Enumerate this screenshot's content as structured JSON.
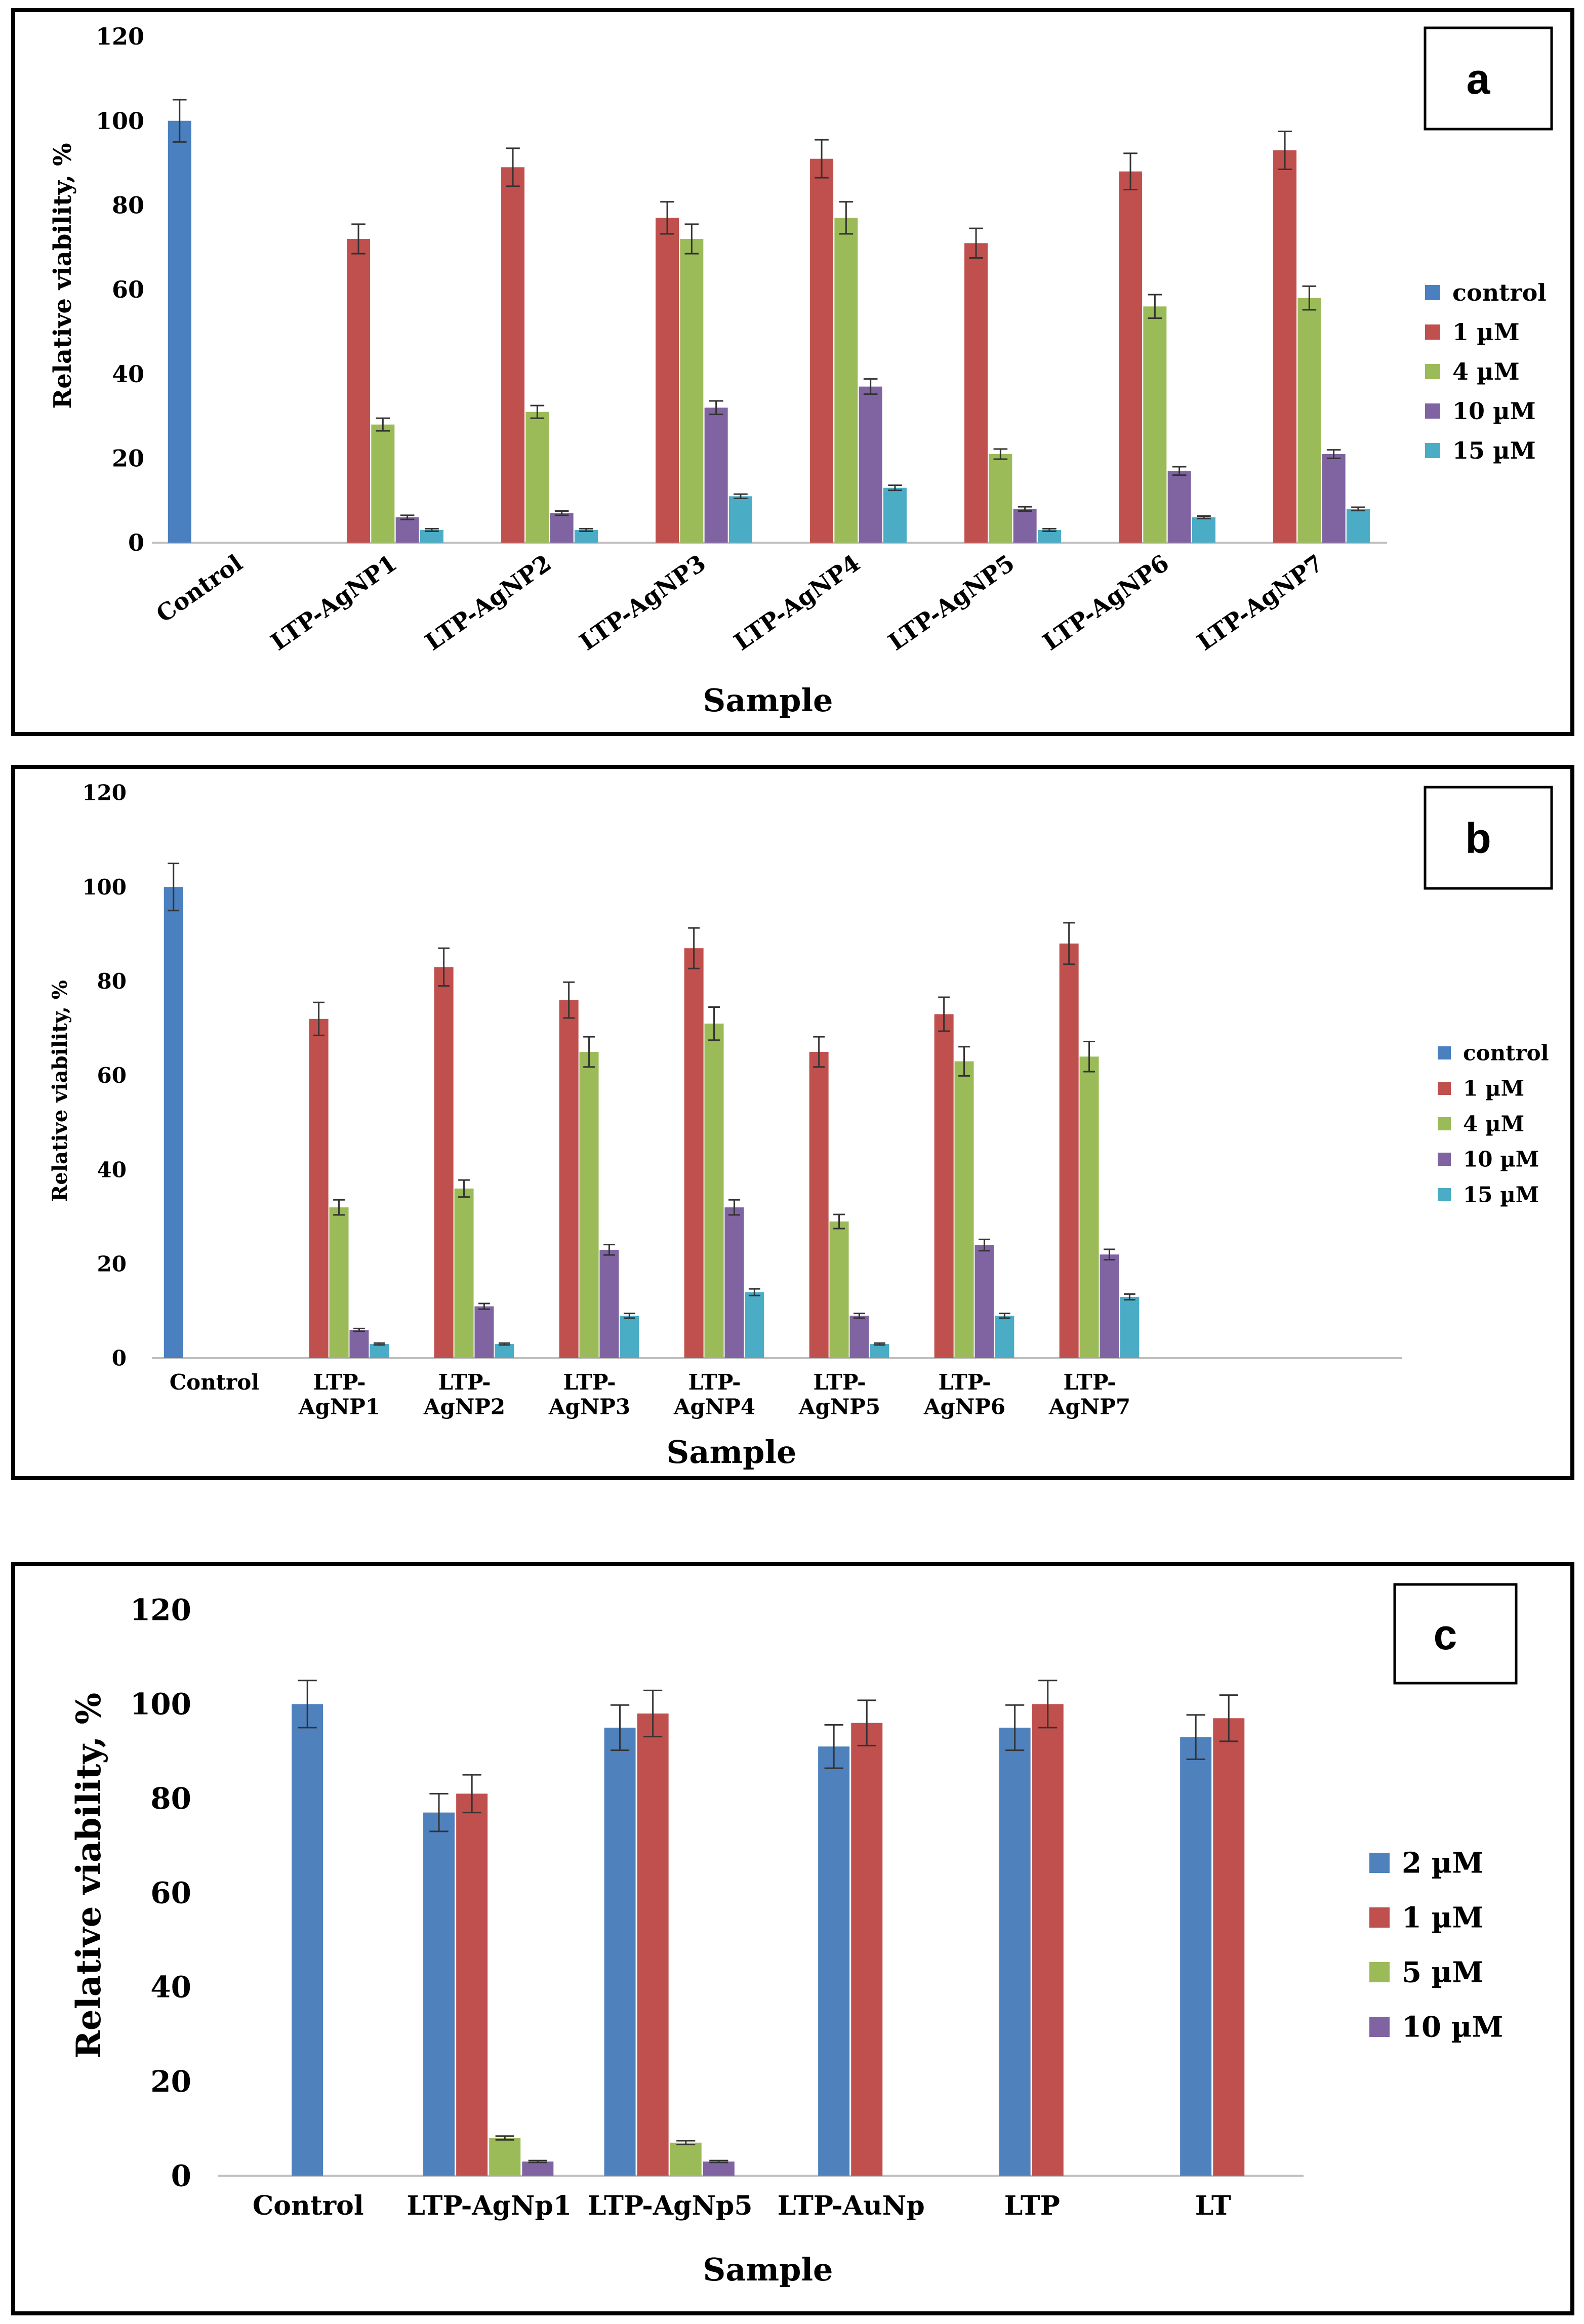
{
  "chart_data": [
    {
      "type": "bar",
      "panel_label": "a",
      "xlabel": "Sample",
      "ylabel": "Relative viability, %",
      "ylim": [
        0,
        120
      ],
      "yticks": [
        0,
        20,
        40,
        60,
        80,
        100,
        120
      ],
      "categories": [
        "Control",
        "LTP-AgNP1",
        "LTP-AgNP2",
        "LTP-AgNP3",
        "LTP-AgNP4",
        "LTP-AgNP5",
        "LTP-AgNP6",
        "LTP-AgNP7"
      ],
      "legend_position": "right",
      "series": [
        {
          "name": "control",
          "color": "#4a7fc0",
          "values": [
            100,
            null,
            null,
            null,
            null,
            null,
            null,
            null
          ],
          "errors": [
            5,
            0,
            0,
            0,
            0,
            0,
            0,
            0
          ]
        },
        {
          "name": "1 µM",
          "color": "#c0504d",
          "values": [
            null,
            72,
            89,
            77,
            91,
            71,
            88,
            93
          ],
          "errors": [
            0,
            3.5,
            4.5,
            3.8,
            4.5,
            3.5,
            4.3,
            4.5
          ]
        },
        {
          "name": "4 µM",
          "color": "#9bbb59",
          "values": [
            null,
            28,
            31,
            72,
            77,
            21,
            56,
            58
          ],
          "errors": [
            0,
            1.5,
            1.5,
            3.5,
            3.8,
            1.2,
            2.8,
            2.8
          ]
        },
        {
          "name": "10 µM",
          "color": "#8064a2",
          "values": [
            null,
            6,
            7,
            32,
            37,
            8,
            17,
            21
          ],
          "errors": [
            0,
            0.5,
            0.5,
            1.6,
            1.8,
            0.5,
            1,
            1
          ]
        },
        {
          "name": "15 µM",
          "color": "#4bacc6",
          "values": [
            null,
            3,
            3,
            11,
            13,
            3,
            6,
            8
          ],
          "errors": [
            0,
            0.3,
            0.3,
            0.5,
            0.6,
            0.3,
            0.3,
            0.4
          ]
        }
      ]
    },
    {
      "type": "bar",
      "panel_label": "b",
      "xlabel": "Sample",
      "ylabel": "Relative viability, %",
      "ylim": [
        0,
        120
      ],
      "yticks": [
        0,
        20,
        40,
        60,
        80,
        100,
        120
      ],
      "categories": [
        "Control",
        "LTP-\nAgNP1",
        "LTP-\nAgNP2",
        "LTP-\nAgNP3",
        "LTP-\nAgNP4",
        "LTP-\nAgNP5",
        "LTP-\nAgNP6",
        "LTP-\nAgNP7",
        "",
        ""
      ],
      "legend_position": "right",
      "series": [
        {
          "name": "control",
          "color": "#4a7fc0",
          "values": [
            100,
            null,
            null,
            null,
            null,
            null,
            null,
            null,
            null,
            null
          ],
          "errors": [
            5,
            0,
            0,
            0,
            0,
            0,
            0,
            0,
            0,
            0
          ]
        },
        {
          "name": "1 µM",
          "color": "#c0504d",
          "values": [
            null,
            72,
            83,
            76,
            87,
            65,
            73,
            88,
            null,
            null
          ],
          "errors": [
            0,
            3.5,
            4,
            3.8,
            4.3,
            3.2,
            3.6,
            4.4,
            0,
            0
          ]
        },
        {
          "name": "4 µM",
          "color": "#9bbb59",
          "values": [
            null,
            32,
            36,
            65,
            71,
            29,
            63,
            64,
            null,
            null
          ],
          "errors": [
            0,
            1.6,
            1.8,
            3.2,
            3.5,
            1.5,
            3.1,
            3.2,
            0,
            0
          ]
        },
        {
          "name": "10 µM",
          "color": "#8064a2",
          "values": [
            null,
            6,
            11,
            23,
            32,
            9,
            24,
            22,
            null,
            null
          ],
          "errors": [
            0,
            0.3,
            0.6,
            1.1,
            1.6,
            0.5,
            1.2,
            1.1,
            0,
            0
          ]
        },
        {
          "name": "15 µM",
          "color": "#4bacc6",
          "values": [
            null,
            3,
            3,
            9,
            14,
            3,
            9,
            13,
            null,
            null
          ],
          "errors": [
            0,
            0.2,
            0.2,
            0.5,
            0.7,
            0.2,
            0.5,
            0.6,
            0,
            0
          ]
        }
      ]
    },
    {
      "type": "bar",
      "panel_label": "c",
      "xlabel": "Sample",
      "ylabel": "Relative viability, %",
      "ylim": [
        0,
        120
      ],
      "yticks": [
        0,
        20,
        40,
        60,
        80,
        100,
        120
      ],
      "categories": [
        "Control",
        "LTP-AgNp1",
        "LTP-AgNp5",
        "LTP-AuNp",
        "LTP",
        "LT"
      ],
      "legend_position": "right",
      "series": [
        {
          "name": "2 µM",
          "color": "#4f81bd",
          "values": [
            100,
            77,
            95,
            91,
            95,
            93
          ],
          "errors": [
            5,
            4,
            4.8,
            4.6,
            4.8,
            4.7
          ]
        },
        {
          "name": "1 µM",
          "color": "#c0504d",
          "values": [
            null,
            81,
            98,
            96,
            100,
            97
          ],
          "errors": [
            0,
            4,
            4.9,
            4.8,
            5,
            4.9
          ]
        },
        {
          "name": "5 µM",
          "color": "#9bbb59",
          "values": [
            null,
            8,
            7,
            null,
            null,
            null
          ],
          "errors": [
            0,
            0.4,
            0.4,
            0,
            0,
            0
          ]
        },
        {
          "name": "10 µM",
          "color": "#8064a2",
          "values": [
            null,
            3,
            3,
            null,
            null,
            null
          ],
          "errors": [
            0,
            0.2,
            0.2,
            0,
            0,
            0
          ]
        }
      ]
    }
  ]
}
